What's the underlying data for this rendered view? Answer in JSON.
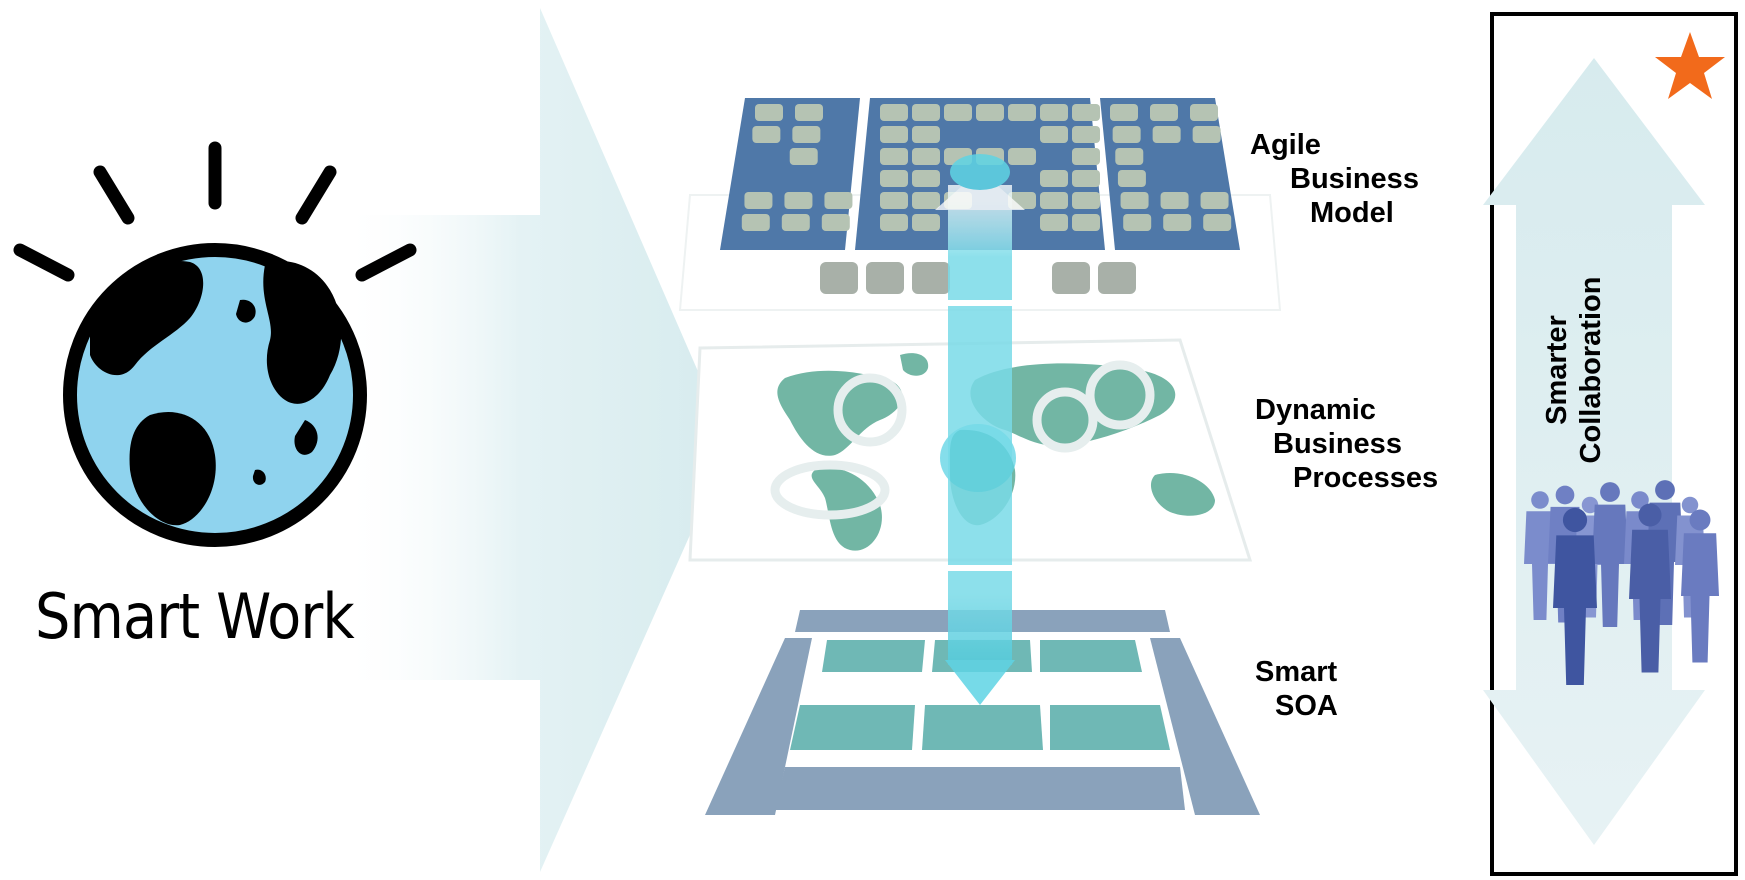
{
  "left": {
    "title": "Smart Work",
    "logo": "smarter-planet-globe-icon"
  },
  "layers": [
    {
      "lines": [
        "Agile",
        "Business",
        "Model"
      ]
    },
    {
      "lines": [
        "Dynamic",
        "Business",
        "Processes"
      ]
    },
    {
      "lines": [
        "Smart",
        "SOA"
      ]
    }
  ],
  "side_panel": {
    "label_lines": [
      "Smarter",
      "Collaboration"
    ],
    "star_icon": "star-icon",
    "people_icon": "business-people-silhouettes-icon",
    "arrow_icon": "double-headed-arrow-icon"
  },
  "colors": {
    "globe_blue": "#8fd3ee",
    "star_orange": "#f26a1b",
    "arrow_tint": "#e3f1f3",
    "tile_blue": "#4f78a8",
    "tile_gray": "#b5c3b3",
    "map_green": "#72b6a4",
    "soa_teal": "#6fb8b5",
    "soa_slate": "#8aa2bb",
    "beam_cyan": "#5fd4e4",
    "people_blue": "#4e63a8"
  }
}
